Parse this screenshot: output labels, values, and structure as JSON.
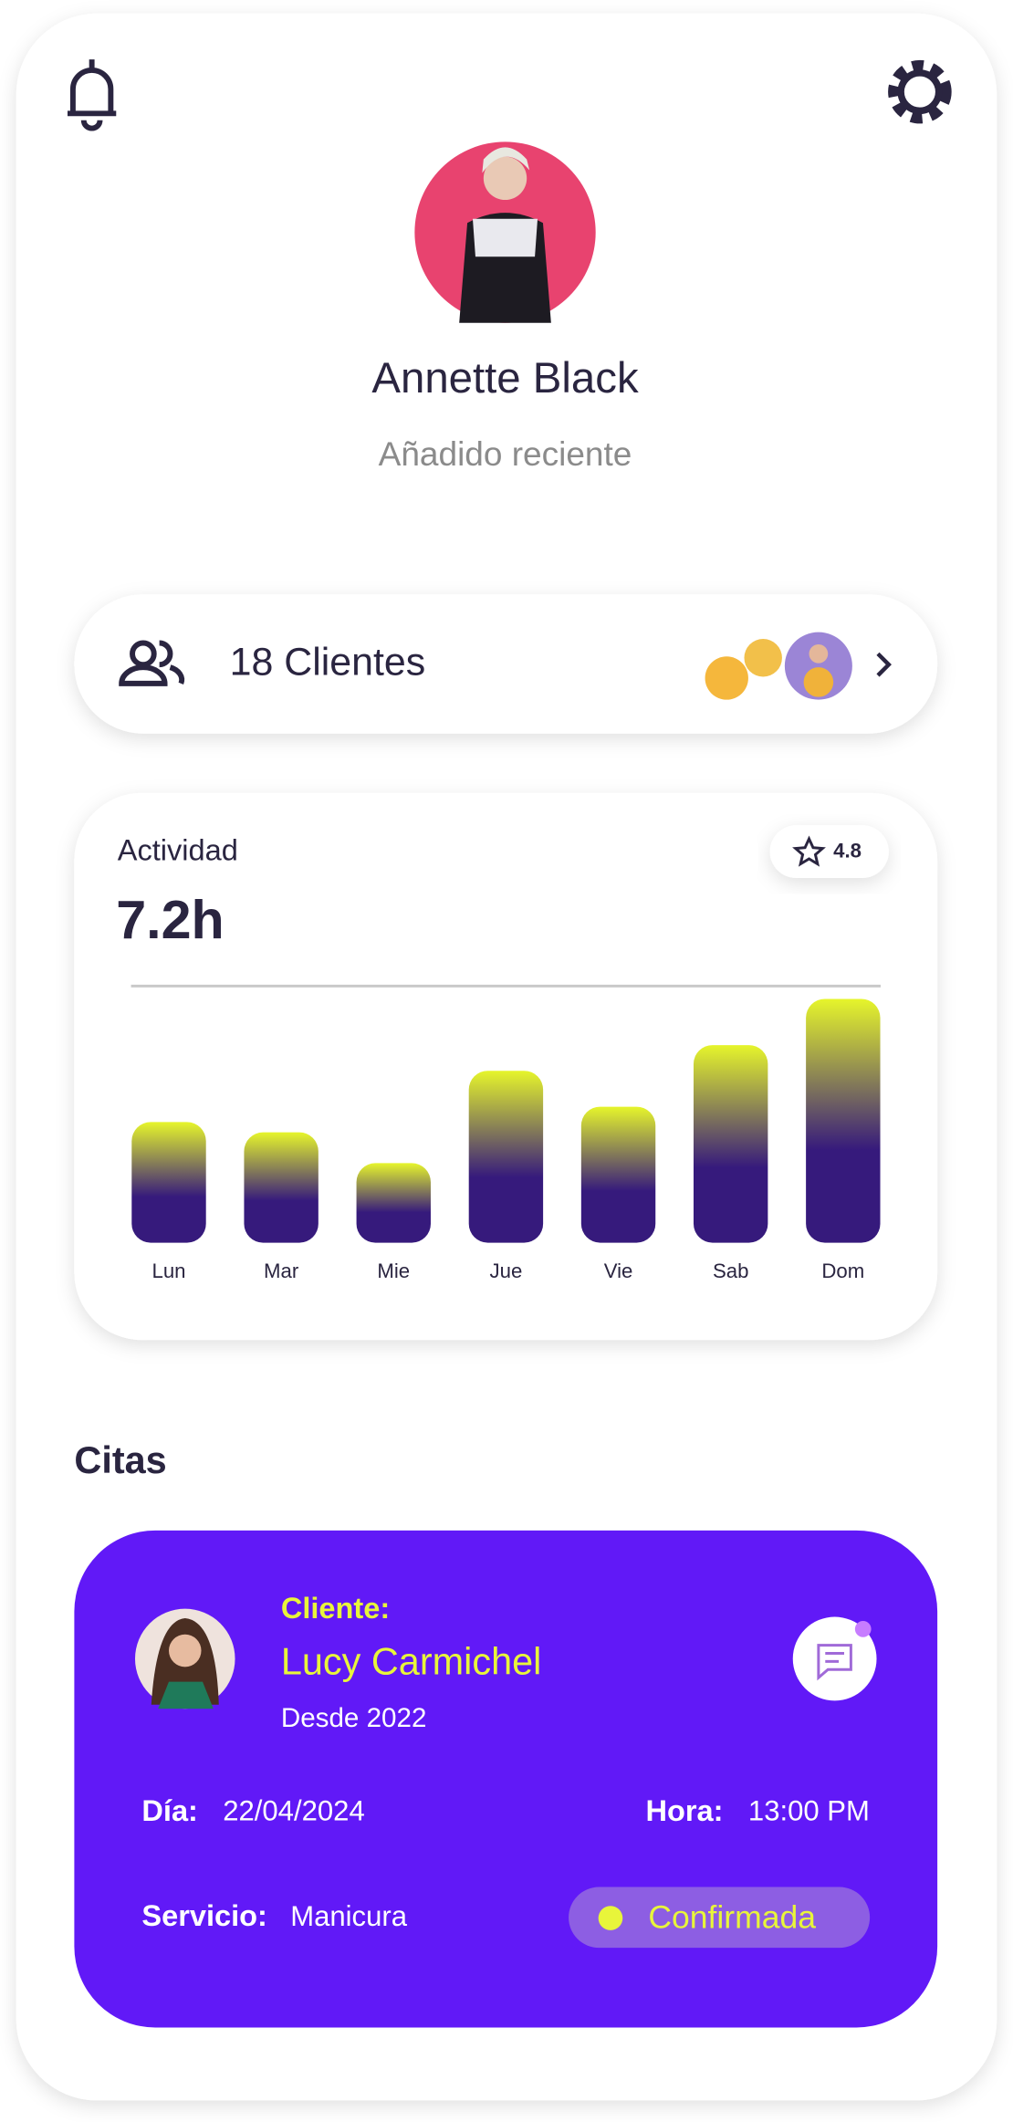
{
  "profile": {
    "name": "Annette Black",
    "status": "Añadido reciente"
  },
  "clients": {
    "label": "18 Clientes"
  },
  "rating": 4.8,
  "chart_data": {
    "type": "bar",
    "title": "Actividad",
    "subtitle": "7.2h",
    "categories": [
      "Lun",
      "Mar",
      "Mie",
      "Jue",
      "Vie",
      "Sab",
      "Dom"
    ],
    "values": [
      4.7,
      4.3,
      3.1,
      6.7,
      5.3,
      7.7,
      9.5
    ],
    "ylim": [
      0,
      10
    ],
    "colors": [
      "#e6f52b",
      "#361a7c"
    ]
  },
  "appointments": {
    "title": "Citas",
    "card": {
      "client_label": "Cliente:",
      "client_name": "Lucy Carmichel",
      "since": "Desde 2022",
      "day_label": "Día:",
      "day": "22/04/2024",
      "time_label": "Hora:",
      "time": "13:00 PM",
      "service_label": "Servicio:",
      "service": "Manicura",
      "status": "Confirmada"
    }
  }
}
